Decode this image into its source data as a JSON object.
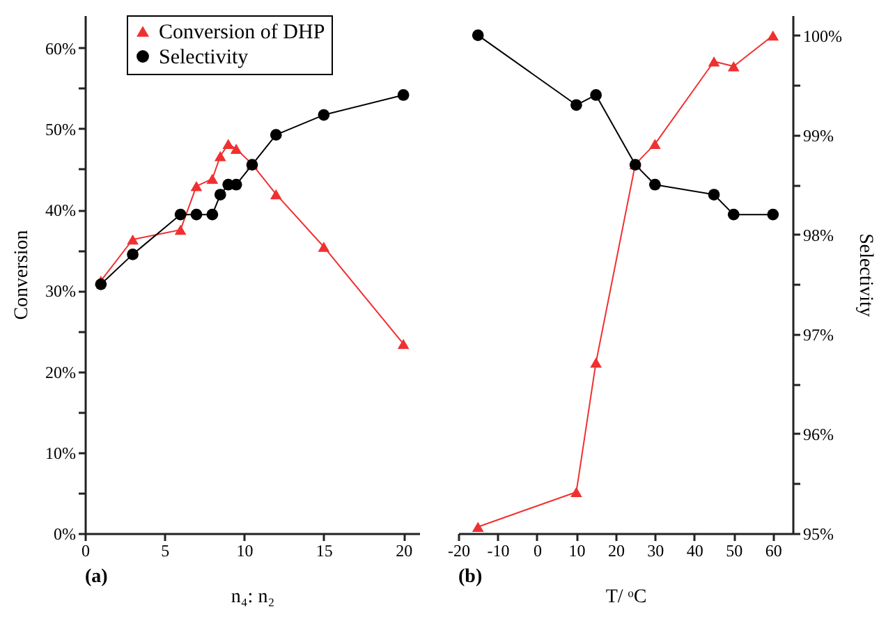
{
  "chart_data": [
    {
      "type": "line",
      "xlabel": "n₄: n₂",
      "ylabel": "Conversion",
      "annotations": [
        "(a)"
      ],
      "legend": "top",
      "line_style": "solid",
      "tick_labels": [
        "x",
        "y"
      ],
      "xlim": [
        0,
        21
      ],
      "xticks": [
        0,
        5,
        10,
        15,
        20
      ],
      "ylim": [
        0,
        64
      ],
      "yticks": [
        {
          "value": 0,
          "label": "0%"
        },
        {
          "value": 5,
          "label": null
        },
        {
          "value": 10,
          "label": "10%"
        },
        {
          "value": 15,
          "label": null
        },
        {
          "value": 20,
          "label": "20%"
        },
        {
          "value": 25,
          "label": null
        },
        {
          "value": 30,
          "label": "30%"
        },
        {
          "value": 35,
          "label": null
        },
        {
          "value": 40,
          "label": "40%"
        },
        {
          "value": 45,
          "label": null
        },
        {
          "value": 50,
          "label": "50%"
        },
        {
          "value": 55,
          "label": null
        },
        {
          "value": 60,
          "label": "60%"
        }
      ],
      "y2lim": [
        95,
        100.2
      ],
      "series": [
        {
          "name": "Conversion of DHP",
          "color": "#f03030",
          "marker": "triangle",
          "x": [
            1,
            3,
            6,
            7,
            8,
            8.5,
            9,
            9.5,
            10.5,
            12,
            15,
            20
          ],
          "values": [
            31.2,
            36.3,
            37.5,
            42.9,
            43.8,
            46.6,
            48.1,
            47.5,
            45.6,
            41.9,
            35.4,
            23.4
          ]
        },
        {
          "name": "Selectivity",
          "color": "#000000",
          "marker": "circle",
          "axis": "y2",
          "x": [
            1,
            3,
            6,
            7,
            8,
            8.5,
            9,
            9.5,
            10.5,
            12,
            15,
            20
          ],
          "values": [
            97.5,
            97.8,
            98.2,
            98.2,
            98.2,
            98.4,
            98.5,
            98.5,
            98.7,
            99.0,
            99.2,
            99.4
          ]
        }
      ]
    },
    {
      "type": "line",
      "xlabel": "T/ ᵒC",
      "y2label": "Selectivity",
      "annotations": [
        "(b)"
      ],
      "line_style": "solid",
      "tick_labels": [
        "x",
        "y2"
      ],
      "xlim": [
        -20,
        65
      ],
      "xticks": [
        -20,
        -10,
        0,
        10,
        20,
        30,
        40,
        50,
        60
      ],
      "ylim": [
        0,
        64
      ],
      "y2lim": [
        95,
        100.2
      ],
      "y2ticks": [
        {
          "value": 95,
          "label": "95%"
        },
        {
          "value": 95.5,
          "label": null
        },
        {
          "value": 96,
          "label": "96%"
        },
        {
          "value": 96.5,
          "label": null
        },
        {
          "value": 97,
          "label": "97%"
        },
        {
          "value": 97.5,
          "label": null
        },
        {
          "value": 98,
          "label": "98%"
        },
        {
          "value": 98.5,
          "label": null
        },
        {
          "value": 99,
          "label": "99%"
        },
        {
          "value": 99.5,
          "label": null
        },
        {
          "value": 100,
          "label": "100%"
        }
      ],
      "series": [
        {
          "color": "#f03030",
          "marker": "triangle",
          "x": [
            -15,
            10,
            15,
            25,
            30,
            45,
            50,
            60
          ],
          "values": [
            0.8,
            5.1,
            21.1,
            45.6,
            48.1,
            58.3,
            57.7,
            61.5
          ]
        },
        {
          "color": "#000000",
          "marker": "circle",
          "axis": "y2",
          "x": [
            -15,
            10,
            15,
            25,
            30,
            45,
            50,
            60
          ],
          "values": [
            100.0,
            99.3,
            99.4,
            98.7,
            98.5,
            98.4,
            98.2,
            98.2
          ]
        }
      ]
    }
  ]
}
